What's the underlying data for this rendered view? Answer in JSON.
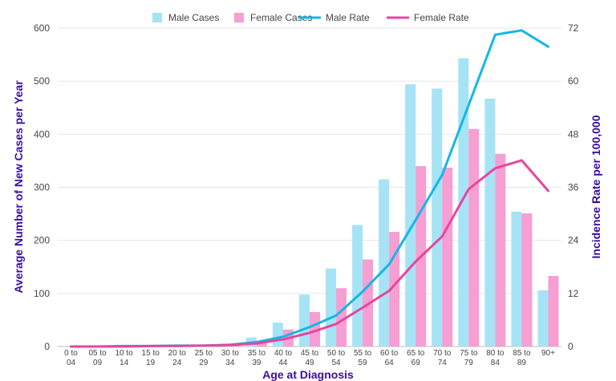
{
  "chart_data": {
    "type": "bar+line",
    "categories": [
      [
        "0 to",
        "04"
      ],
      [
        "05 to",
        "09"
      ],
      [
        "10 to",
        "14"
      ],
      [
        "15 to",
        "19"
      ],
      [
        "20 to",
        "24"
      ],
      [
        "25 to",
        "29"
      ],
      [
        "30 to",
        "34"
      ],
      [
        "35 to",
        "39"
      ],
      [
        "40 to",
        "44"
      ],
      [
        "45 to",
        "49"
      ],
      [
        "50 to",
        "54"
      ],
      [
        "55 to",
        "59"
      ],
      [
        "60 to",
        "64"
      ],
      [
        "65 to",
        "69"
      ],
      [
        "70 to",
        "74"
      ],
      [
        "75 to",
        "79"
      ],
      [
        "80 to",
        "84"
      ],
      [
        "85 to",
        "89"
      ],
      [
        "90+"
      ]
    ],
    "series": [
      {
        "name": "Male Cases",
        "kind": "bar",
        "axis": "left",
        "color": "#a6e3f5",
        "values": [
          0,
          0,
          1,
          1,
          1,
          2,
          5,
          17,
          45,
          98,
          147,
          229,
          315,
          494,
          486,
          543,
          467,
          254,
          106
        ]
      },
      {
        "name": "Female Cases",
        "kind": "bar",
        "axis": "left",
        "color": "#f59fd2",
        "values": [
          0,
          0,
          0,
          1,
          1,
          2,
          4,
          10,
          32,
          65,
          110,
          164,
          216,
          340,
          337,
          410,
          363,
          251,
          133
        ]
      },
      {
        "name": "Male Rate",
        "kind": "line",
        "axis": "right",
        "color": "#14b7e6",
        "values": [
          0,
          0,
          0.1,
          0.1,
          0.2,
          0.2,
          0.4,
          1.0,
          2.2,
          4.4,
          7.0,
          12.4,
          18.6,
          28.6,
          38.8,
          54.6,
          70.5,
          71.5,
          67.8
        ]
      },
      {
        "name": "Female Rate",
        "kind": "line",
        "axis": "right",
        "color": "#e8459f",
        "values": [
          0,
          0,
          0,
          0.1,
          0.1,
          0.2,
          0.3,
          0.7,
          1.6,
          3.1,
          5.1,
          8.8,
          12.6,
          19.2,
          24.9,
          35.6,
          40.3,
          42.1,
          35.2
        ]
      }
    ],
    "xlabel": "Age at Diagnosis",
    "ylabel": "Average Number of New Cases per Year",
    "y2label": "Incidence Rate per 100,000",
    "ylim": [
      0,
      600
    ],
    "yticks": [
      0,
      100,
      200,
      300,
      400,
      500,
      600
    ],
    "y2lim": [
      0,
      72
    ],
    "y2ticks": [
      0,
      12,
      24,
      36,
      48,
      60,
      72
    ],
    "grid": "horizontal",
    "legend_position": "top-center"
  }
}
